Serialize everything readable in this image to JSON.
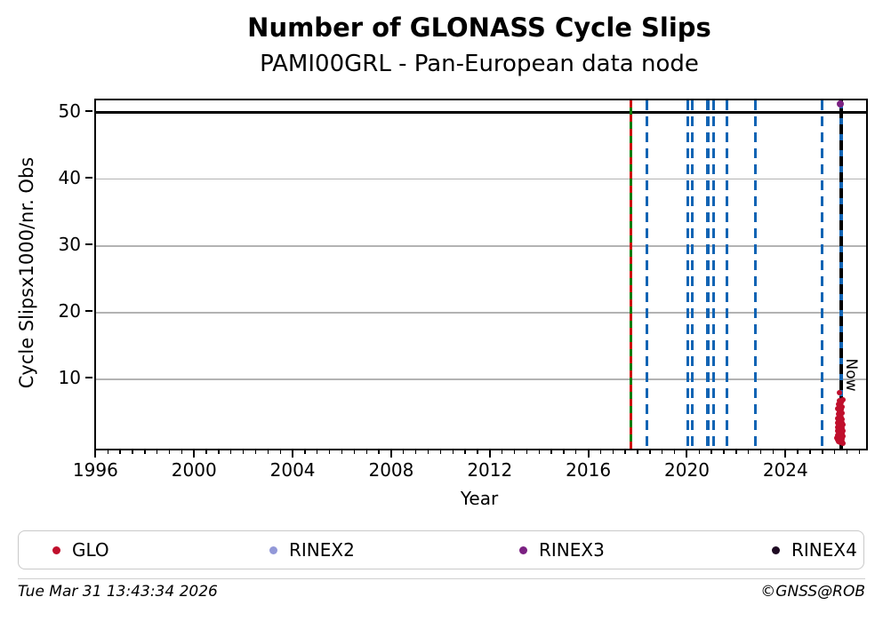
{
  "chart_data": {
    "type": "scatter",
    "title": "Number of GLONASS Cycle Slips",
    "subtitle": "PAMI00GRL - Pan-European data node",
    "xlabel": "Year",
    "ylabel": "Cycle Slipsx1000/nr. Obs",
    "xlim": [
      1995.95,
      2027.2
    ],
    "ylim": [
      -0.4,
      51.8
    ],
    "xticks": [
      1996,
      2000,
      2004,
      2008,
      2012,
      2016,
      2020,
      2024
    ],
    "x_minor_tick_step": 0.5,
    "yticks": [
      10,
      20,
      30,
      40,
      50
    ],
    "grid": "horizontal-only",
    "grid_color": "#b3b3b3",
    "hline_black": 50,
    "vlines": {
      "green_solid": 2017.66,
      "red_dashed_overlay": 2017.66,
      "blue_dashed": [
        2018.31,
        2019.96,
        2020.14,
        2020.78,
        2021.02,
        2021.56,
        2022.7,
        2025.41,
        2026.19
      ],
      "now_black_dashed": 2026.19
    },
    "line_colors": {
      "green": "#0a7d0a",
      "red_dash": "#cc1111",
      "blue_dash": "#1164b4",
      "now_black": "#000000"
    },
    "now_label": "Now",
    "legend_position": "bottom",
    "series": [
      {
        "name": "GLO",
        "color": "#c00f2c",
        "marker_px": 6,
        "points": [
          [
            2026.02,
            1.2
          ],
          [
            2026.03,
            2.8
          ],
          [
            2026.04,
            0.9
          ],
          [
            2026.04,
            4.1
          ],
          [
            2026.05,
            2.2
          ],
          [
            2026.05,
            5.6
          ],
          [
            2026.06,
            1.6
          ],
          [
            2026.06,
            3.4
          ],
          [
            2026.07,
            2.5
          ],
          [
            2026.07,
            6.3
          ],
          [
            2026.08,
            1.1
          ],
          [
            2026.08,
            4.8
          ],
          [
            2026.09,
            2.9
          ],
          [
            2026.09,
            0.6
          ],
          [
            2026.1,
            3.8
          ],
          [
            2026.1,
            5.2
          ],
          [
            2026.11,
            8.05
          ],
          [
            2026.11,
            1.9
          ],
          [
            2026.11,
            2.6
          ],
          [
            2026.12,
            4.4
          ],
          [
            2026.12,
            0.8
          ],
          [
            2026.12,
            6.8
          ],
          [
            2026.13,
            3.1
          ],
          [
            2026.13,
            1.4
          ],
          [
            2026.14,
            2.3
          ],
          [
            2026.14,
            5.0
          ],
          [
            2026.15,
            3.6
          ],
          [
            2026.15,
            0.5
          ],
          [
            2026.15,
            6.0
          ],
          [
            2026.16,
            2.0
          ],
          [
            2026.16,
            4.6
          ],
          [
            2026.17,
            1.7
          ],
          [
            2026.17,
            3.3
          ],
          [
            2026.17,
            5.8
          ],
          [
            2026.18,
            2.7
          ],
          [
            2026.18,
            0.9
          ],
          [
            2026.18,
            4.2
          ],
          [
            2026.19,
            1.3
          ],
          [
            2026.19,
            3.9
          ],
          [
            2026.19,
            6.5
          ],
          [
            2026.2,
            2.4
          ],
          [
            2026.2,
            5.4
          ],
          [
            2026.21,
            1.8
          ],
          [
            2026.21,
            3.0
          ],
          [
            2026.21,
            0.7
          ],
          [
            2026.22,
            4.9
          ],
          [
            2026.22,
            2.1
          ],
          [
            2026.23,
            3.5
          ],
          [
            2026.23,
            1.0
          ],
          [
            2026.23,
            5.9
          ],
          [
            2026.24,
            2.6
          ],
          [
            2026.24,
            4.0
          ],
          [
            2026.25,
            1.5
          ],
          [
            2026.25,
            3.2
          ],
          [
            2026.25,
            6.9
          ],
          [
            2026.26,
            2.2
          ],
          [
            2026.26,
            0.4
          ]
        ]
      },
      {
        "name": "RINEX2",
        "color": "#9298d8",
        "marker_px": 6,
        "points": []
      },
      {
        "name": "RINEX3",
        "color": "#7b2182",
        "marker_px": 8,
        "points": [
          [
            2026.17,
            51.3
          ]
        ]
      },
      {
        "name": "RINEX4",
        "color": "#1e0a22",
        "marker_px": 6,
        "points": []
      }
    ]
  },
  "footer": {
    "timestamp": "Tue Mar 31 13:43:34 2026",
    "copyright": "©GNSS@ROB"
  }
}
